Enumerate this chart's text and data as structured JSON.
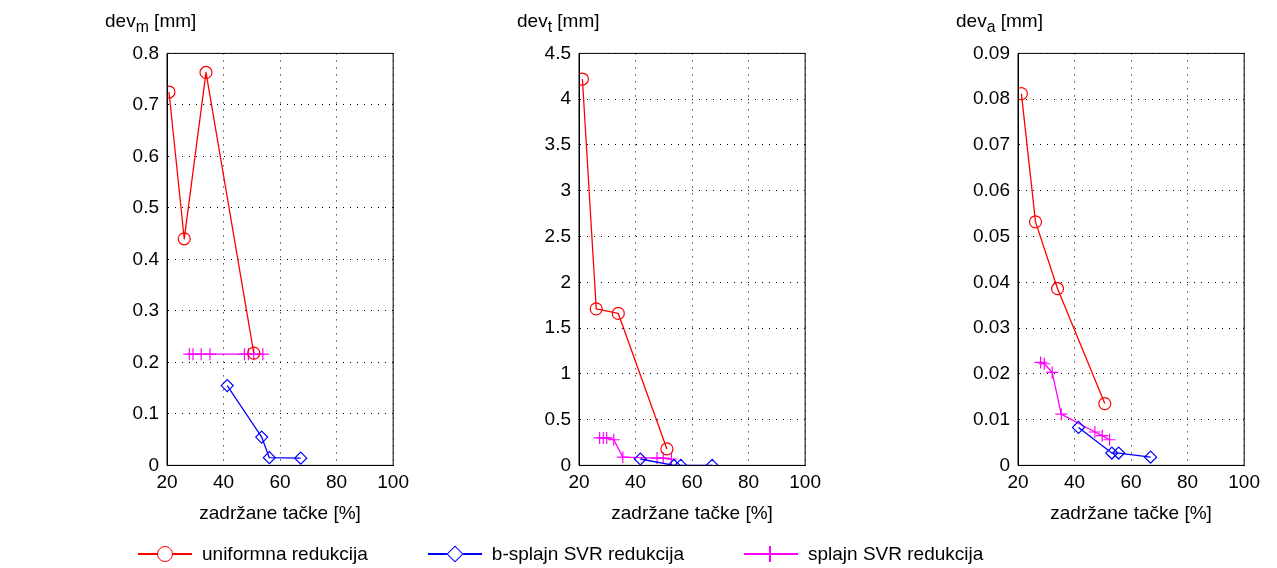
{
  "chart_data": [
    {
      "type": "line",
      "ylabel": "dev$_{m}$ [mm]",
      "xlabel": "zadržane tačke [%]",
      "xlim": [
        20,
        100
      ],
      "xticks": [
        20,
        40,
        60,
        80,
        100
      ],
      "ylim": [
        0,
        0.8
      ],
      "yticks": [
        0,
        0.1,
        0.2,
        0.3,
        0.4,
        0.5,
        0.6,
        0.7,
        0.8
      ],
      "grid": true,
      "legend": "bottom",
      "series": [
        {
          "name": "uniformna redukcija",
          "color": "#ff0000",
          "marker": "circle",
          "x": [
            20.7,
            26.1,
            33.8,
            50.7
          ],
          "values": [
            0.725,
            0.44,
            0.763,
            0.218
          ]
        },
        {
          "name": "b-splajn SVR redukcija",
          "color": "#0000ff",
          "marker": "diamond",
          "x": [
            41.3,
            53.5,
            56.2,
            67.3
          ],
          "values": [
            0.155,
            0.055,
            0.015,
            0.014
          ]
        },
        {
          "name": "splajn SVR redukcija",
          "color": "#ff00ff",
          "marker": "cross",
          "x": [
            27.9,
            29.2,
            32.1,
            35.2,
            47.4,
            48.8,
            50.7,
            53.9
          ],
          "values": [
            0.216,
            0.216,
            0.216,
            0.216,
            0.216,
            0.216,
            0.216,
            0.216
          ]
        }
      ]
    },
    {
      "type": "line",
      "ylabel": "dev$_{t}$ [mm]",
      "xlabel": "zadržane tačke [%]",
      "xlim": [
        20,
        100
      ],
      "xticks": [
        20,
        40,
        60,
        80,
        100
      ],
      "ylim": [
        0,
        4.5
      ],
      "yticks": [
        0,
        0.5,
        1,
        1.5,
        2,
        2.5,
        3,
        3.5,
        4,
        4.5
      ],
      "grid": true,
      "series": [
        {
          "color": "#ff0000",
          "marker": "circle",
          "x": [
            21.2,
            26.1,
            33.9,
            51.1
          ],
          "values": [
            4.22,
            1.71,
            1.66,
            0.18
          ]
        },
        {
          "color": "#0000ff",
          "marker": "diamond",
          "x": [
            41.7,
            53.6,
            56,
            67.1
          ],
          "values": [
            0.07,
            0,
            0,
            0
          ]
        },
        {
          "color": "#ff00ff",
          "marker": "cross",
          "x": [
            27.3,
            28.6,
            29.8,
            32.3,
            35.5,
            47.6,
            49.8,
            52.7
          ],
          "values": [
            0.3,
            0.3,
            0.3,
            0.28,
            0.09,
            0.08,
            0.08,
            0.07
          ]
        }
      ]
    },
    {
      "type": "line",
      "ylabel": "dev$_{a}$ [mm]",
      "xlabel": "zadržane tačke [%]",
      "xlim": [
        20,
        100
      ],
      "xticks": [
        20,
        40,
        60,
        80,
        100
      ],
      "ylim": [
        0,
        0.09
      ],
      "yticks": [
        0,
        0.01,
        0.02,
        0.03,
        0.04,
        0.05,
        0.06,
        0.07,
        0.08,
        0.09
      ],
      "grid": true,
      "series": [
        {
          "color": "#ff0000",
          "marker": "circle",
          "x": [
            21.2,
            26.2,
            34,
            50.7
          ],
          "values": [
            0.0812,
            0.0532,
            0.0386,
            0.0135
          ]
        },
        {
          "color": "#0000ff",
          "marker": "diamond",
          "x": [
            41.4,
            53.2,
            55.6,
            66.9
          ],
          "values": [
            0.0083,
            0.0027,
            0.0027,
            0.0018
          ]
        },
        {
          "color": "#ff00ff",
          "marker": "cross",
          "x": [
            28,
            29.3,
            32.1,
            35.3,
            47.2,
            49.8,
            52.4
          ],
          "values": [
            0.0225,
            0.0222,
            0.0203,
            0.0112,
            0.0073,
            0.0065,
            0.0056
          ]
        }
      ]
    }
  ]
}
